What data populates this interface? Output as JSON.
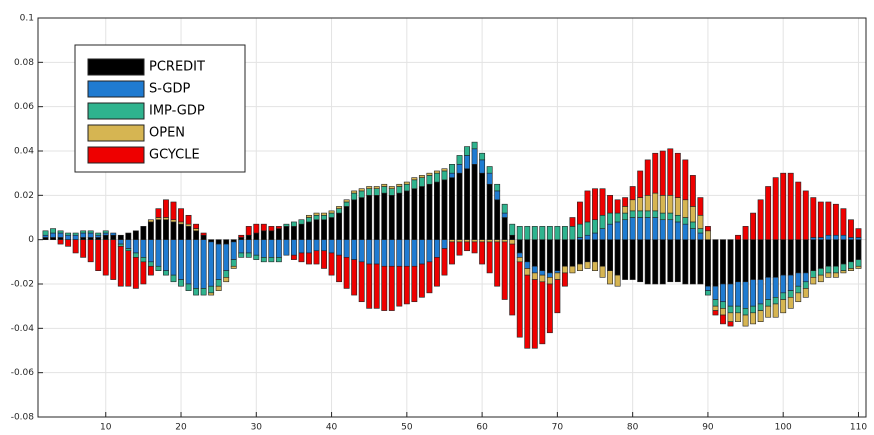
{
  "chart_data": {
    "type": "stacked_bar",
    "x": [
      2,
      3,
      4,
      5,
      6,
      7,
      8,
      9,
      10,
      11,
      12,
      13,
      14,
      15,
      16,
      17,
      18,
      19,
      20,
      21,
      22,
      23,
      24,
      25,
      26,
      27,
      28,
      29,
      30,
      31,
      32,
      33,
      34,
      35,
      36,
      37,
      38,
      39,
      40,
      41,
      42,
      43,
      44,
      45,
      46,
      47,
      48,
      49,
      50,
      51,
      52,
      53,
      54,
      55,
      56,
      57,
      58,
      59,
      60,
      61,
      62,
      63,
      64,
      65,
      66,
      67,
      68,
      69,
      70,
      71,
      72,
      73,
      74,
      75,
      76,
      77,
      78,
      79,
      80,
      81,
      82,
      83,
      84,
      85,
      86,
      87,
      88,
      89,
      90,
      91,
      92,
      93,
      94,
      95,
      96,
      97,
      98,
      99,
      100,
      101,
      102,
      103,
      104,
      105,
      106,
      107,
      108,
      109,
      110
    ],
    "series": [
      {
        "name": "PCREDIT",
        "color": "#000000",
        "values": [
          0.001,
          0.001,
          0.001,
          0,
          0,
          0.001,
          0.001,
          0.001,
          0.002,
          0.002,
          0.002,
          0.003,
          0.004,
          0.006,
          0.008,
          0.009,
          0.009,
          0.008,
          0.007,
          0.006,
          0.004,
          0.002,
          -0.001,
          -0.002,
          -0.002,
          -0.001,
          0.001,
          0.002,
          0.003,
          0.004,
          0.004,
          0.005,
          0.006,
          0.006,
          0.007,
          0.008,
          0.009,
          0.009,
          0.01,
          0.012,
          0.015,
          0.018,
          0.019,
          0.02,
          0.02,
          0.021,
          0.02,
          0.021,
          0.022,
          0.023,
          0.024,
          0.025,
          0.026,
          0.027,
          0.028,
          0.03,
          0.032,
          0.034,
          0.03,
          0.025,
          0.018,
          0.01,
          0.002,
          -0.006,
          -0.01,
          -0.012,
          -0.014,
          -0.015,
          -0.014,
          -0.012,
          -0.012,
          -0.011,
          -0.01,
          -0.01,
          -0.012,
          -0.014,
          -0.016,
          -0.018,
          -0.018,
          -0.019,
          -0.02,
          -0.02,
          -0.02,
          -0.019,
          -0.019,
          -0.02,
          -0.02,
          -0.02,
          -0.021,
          -0.021,
          -0.02,
          -0.02,
          -0.019,
          -0.019,
          -0.018,
          -0.018,
          -0.017,
          -0.017,
          -0.016,
          -0.016,
          -0.015,
          -0.015,
          -0.014,
          -0.013,
          -0.012,
          -0.012,
          -0.011,
          -0.01,
          -0.009
        ]
      },
      {
        "name": "S-GDP",
        "color": "#1f7bd1",
        "values": [
          0.001,
          0.002,
          0.002,
          0.002,
          0.002,
          0.002,
          0.002,
          0.001,
          0.001,
          0.001,
          -0.002,
          -0.004,
          -0.006,
          -0.008,
          -0.01,
          -0.012,
          -0.014,
          -0.016,
          -0.018,
          -0.02,
          -0.022,
          -0.022,
          -0.02,
          -0.016,
          -0.012,
          -0.008,
          -0.006,
          -0.006,
          -0.007,
          -0.008,
          -0.008,
          -0.008,
          -0.007,
          -0.007,
          -0.006,
          -0.006,
          -0.005,
          -0.005,
          -0.006,
          -0.007,
          -0.008,
          -0.009,
          -0.01,
          -0.011,
          -0.011,
          -0.012,
          -0.012,
          -0.012,
          -0.012,
          -0.012,
          -0.011,
          -0.01,
          -0.008,
          -0.004,
          0.002,
          0.004,
          0.006,
          0.007,
          0.006,
          0.005,
          0.004,
          0.002,
          0,
          -0.002,
          -0.003,
          -0.003,
          -0.002,
          -0.002,
          -0.001,
          0,
          0,
          0.001,
          0.002,
          0.003,
          0.005,
          0.007,
          0.008,
          0.009,
          0.01,
          0.01,
          0.01,
          0.01,
          0.009,
          0.009,
          0.008,
          0.007,
          0.005,
          0.003,
          -0.002,
          -0.006,
          -0.008,
          -0.01,
          -0.011,
          -0.012,
          -0.012,
          -0.011,
          -0.01,
          -0.009,
          -0.008,
          -0.007,
          -0.006,
          -0.004,
          0.001,
          0.001,
          0.002,
          0.002,
          0.002,
          0.001,
          0.001
        ]
      },
      {
        "name": "IMP-GDP",
        "color": "#2fb38e",
        "values": [
          0.002,
          0.002,
          0.001,
          0.001,
          0.001,
          0.001,
          0.001,
          0.001,
          0.001,
          0,
          -0.001,
          -0.001,
          -0.002,
          -0.002,
          -0.002,
          -0.002,
          -0.002,
          -0.003,
          -0.003,
          -0.003,
          -0.003,
          -0.003,
          -0.003,
          -0.003,
          -0.003,
          -0.003,
          -0.002,
          -0.002,
          -0.002,
          -0.002,
          -0.002,
          -0.002,
          0.001,
          0.002,
          0.002,
          0.002,
          0.002,
          0.002,
          0.002,
          0.002,
          0.002,
          0.003,
          0.003,
          0.003,
          0.003,
          0.003,
          0.003,
          0.003,
          0.003,
          0.004,
          0.004,
          0.004,
          0.004,
          0.004,
          0.004,
          0.004,
          0.004,
          0.003,
          0.003,
          0.003,
          0.003,
          0.004,
          0.005,
          0.006,
          0.006,
          0.006,
          0.006,
          0.006,
          0.006,
          0.006,
          0.006,
          0.006,
          0.006,
          0.006,
          0.006,
          0.005,
          0.004,
          0.003,
          0.003,
          0.003,
          0.003,
          0.003,
          0.003,
          0.003,
          0.003,
          0.003,
          0.003,
          0.002,
          -0.002,
          -0.003,
          -0.003,
          -0.003,
          -0.003,
          -0.003,
          -0.003,
          -0.003,
          -0.003,
          -0.003,
          -0.003,
          -0.003,
          -0.003,
          -0.003,
          -0.003,
          -0.003,
          -0.003,
          -0.003,
          -0.003,
          -0.003,
          -0.003
        ]
      },
      {
        "name": "OPEN",
        "color": "#d6b552",
        "values": [
          0,
          0,
          0,
          0,
          0,
          0,
          0,
          0,
          0,
          0,
          0,
          0,
          0,
          0,
          0.001,
          0.001,
          0.001,
          0.001,
          0.001,
          0.001,
          0.001,
          0,
          -0.001,
          -0.002,
          -0.002,
          -0.001,
          0,
          0,
          0,
          0,
          0,
          0,
          0,
          0,
          0,
          0.001,
          0.001,
          0.001,
          0.001,
          0.001,
          0.001,
          0.001,
          0.001,
          0.001,
          0.001,
          0.001,
          0.001,
          0.001,
          0.001,
          0.001,
          0.001,
          0.001,
          0.001,
          0.001,
          -0.001,
          -0.001,
          -0.001,
          -0.001,
          -0.001,
          -0.001,
          -0.001,
          -0.001,
          -0.002,
          -0.002,
          -0.003,
          -0.003,
          -0.003,
          -0.003,
          -0.003,
          -0.003,
          -0.003,
          -0.003,
          -0.003,
          -0.004,
          -0.005,
          -0.006,
          -0.005,
          0.003,
          0.005,
          0.006,
          0.007,
          0.008,
          0.008,
          0.008,
          0.008,
          0.008,
          0.007,
          0.006,
          0.004,
          -0.002,
          -0.003,
          -0.004,
          -0.004,
          -0.005,
          -0.005,
          -0.005,
          -0.005,
          -0.006,
          -0.006,
          -0.005,
          -0.004,
          -0.004,
          -0.003,
          -0.003,
          -0.002,
          -0.002,
          -0.001,
          -0.001,
          -0.001
        ]
      },
      {
        "name": "GCYCLE",
        "color": "#ee0000",
        "values": [
          0,
          0,
          -0.002,
          -0.003,
          -0.006,
          -0.008,
          -0.01,
          -0.014,
          -0.016,
          -0.018,
          -0.018,
          -0.016,
          -0.014,
          -0.01,
          -0.004,
          0.004,
          0.008,
          0.008,
          0.006,
          0.004,
          0.002,
          0.001,
          0,
          0,
          0,
          0,
          0.001,
          0.004,
          0.004,
          0.003,
          0.002,
          0.001,
          0,
          -0.002,
          -0.004,
          -0.005,
          -0.006,
          -0.008,
          -0.01,
          -0.012,
          -0.014,
          -0.016,
          -0.018,
          -0.02,
          -0.02,
          -0.02,
          -0.02,
          -0.018,
          -0.017,
          -0.016,
          -0.015,
          -0.014,
          -0.013,
          -0.012,
          -0.01,
          -0.006,
          -0.004,
          -0.005,
          -0.01,
          -0.014,
          -0.02,
          -0.026,
          -0.032,
          -0.034,
          -0.033,
          -0.031,
          -0.028,
          -0.022,
          -0.015,
          -0.006,
          0.004,
          0.01,
          0.014,
          0.014,
          0.012,
          0.008,
          0.006,
          0.004,
          0.006,
          0.012,
          0.016,
          0.018,
          0.02,
          0.021,
          0.02,
          0.018,
          0.014,
          0.008,
          0.002,
          -0.002,
          -0.004,
          -0.002,
          0.002,
          0.006,
          0.012,
          0.018,
          0.024,
          0.028,
          0.03,
          0.03,
          0.026,
          0.022,
          0.018,
          0.016,
          0.015,
          0.014,
          0.012,
          0.008,
          0.004
        ]
      }
    ],
    "xlim": [
      1,
      111
    ],
    "xticks": [
      10,
      20,
      30,
      40,
      50,
      60,
      70,
      80,
      90,
      100,
      110
    ],
    "ylim": [
      -0.08,
      0.1
    ],
    "yticks": [
      -0.08,
      -0.06,
      -0.04,
      -0.02,
      0,
      0.02,
      0.04,
      0.06,
      0.08,
      0.1
    ],
    "grid": true,
    "legend": "upper left"
  }
}
